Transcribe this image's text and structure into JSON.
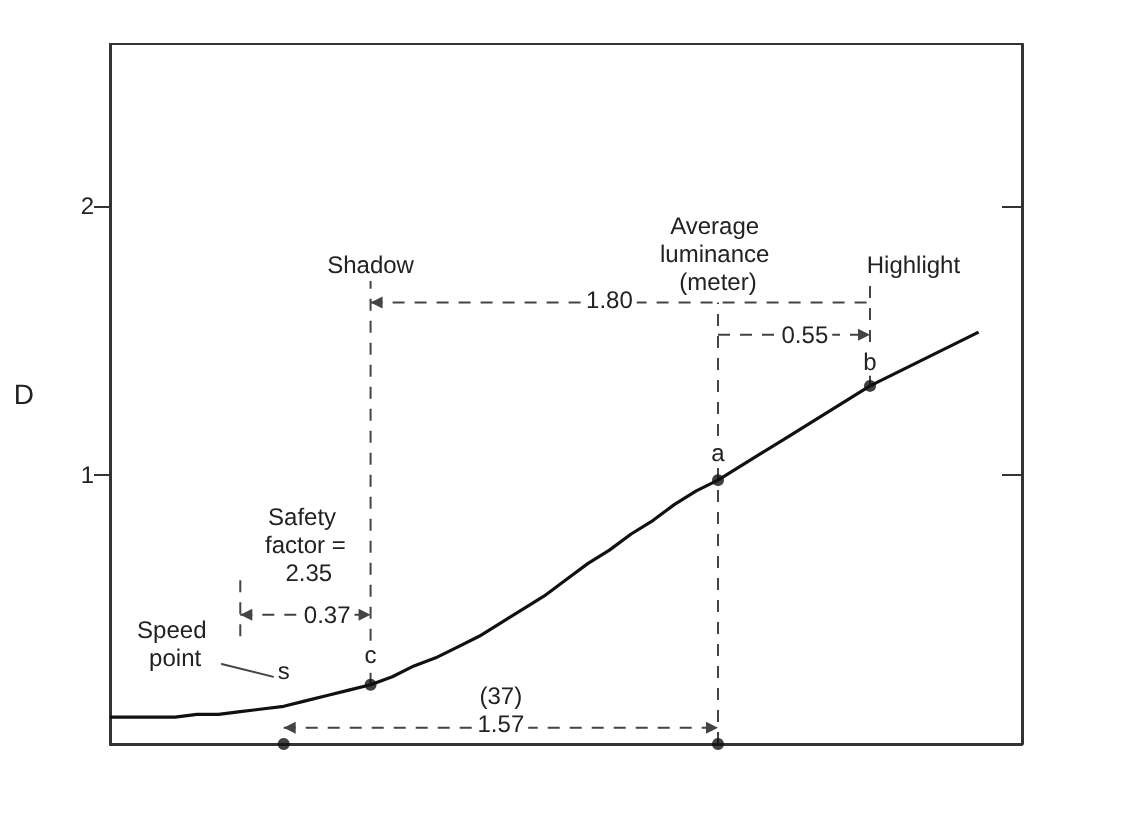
{
  "chart_data": {
    "type": "line",
    "ylabel": "D",
    "categories": [
      null,
      null,
      null,
      null,
      null,
      null,
      null,
      null,
      null,
      null,
      null,
      null,
      null,
      null,
      null,
      null,
      null,
      null,
      null,
      null,
      null,
      null,
      null,
      null,
      null,
      null,
      null,
      null,
      null,
      null,
      null,
      null,
      null,
      null,
      null,
      null,
      null,
      null,
      null,
      null,
      null,
      null,
      null
    ],
    "ylim": [
      0,
      2.6
    ],
    "yticks": [
      1,
      2
    ],
    "grid": false,
    "tick_labels": "y",
    "marker": "none",
    "series": [
      {
        "color": "#111111",
        "values": [
          0.1,
          0.1,
          0.1,
          0.1,
          0.11,
          0.11,
          0.12,
          0.13,
          0.14,
          0.16,
          0.18,
          0.2,
          0.22,
          0.25,
          0.29,
          0.32,
          0.36,
          0.4,
          0.45,
          0.5,
          0.55,
          0.61,
          0.67,
          0.72,
          0.78,
          0.83,
          0.89,
          0.94,
          0.98,
          1.03,
          1.08,
          1.13,
          1.18,
          1.23,
          1.28,
          1.33,
          1.37,
          1.41,
          1.45,
          1.49,
          1.53,
          null,
          null
        ]
      },
      {
        "type": "scatter",
        "color": "#111111",
        "marker": "circle",
        "values": [
          null,
          null,
          null,
          null,
          null,
          null,
          null,
          null,
          null,
          null,
          null,
          null,
          0.22,
          null,
          null,
          null,
          null,
          null,
          null,
          null,
          null,
          null,
          null,
          null,
          null,
          null,
          null,
          null,
          0.98,
          null,
          null,
          null,
          null,
          null,
          null,
          1.33,
          null,
          null,
          null,
          null,
          null,
          null,
          null
        ]
      },
      {
        "type": "scatter",
        "color": "#111111",
        "marker": "circle",
        "values": [
          null,
          null,
          null,
          null,
          null,
          null,
          null,
          null,
          0,
          null,
          null,
          null,
          null,
          null,
          null,
          null,
          null,
          null,
          null,
          null,
          null,
          null,
          null,
          null,
          null,
          null,
          null,
          null,
          0,
          null,
          null,
          null,
          null,
          null,
          null,
          null,
          null,
          null,
          null,
          null,
          null,
          null,
          null
        ]
      }
    ],
    "annotations": [
      "Shadow",
      "Average luminance (meter)",
      "Highlight",
      "1.80",
      "0.55",
      "Safety factor = 2.35",
      "0.37",
      "Speed point",
      "(37)",
      "1.57",
      "s",
      "c",
      "a",
      "b"
    ]
  }
}
